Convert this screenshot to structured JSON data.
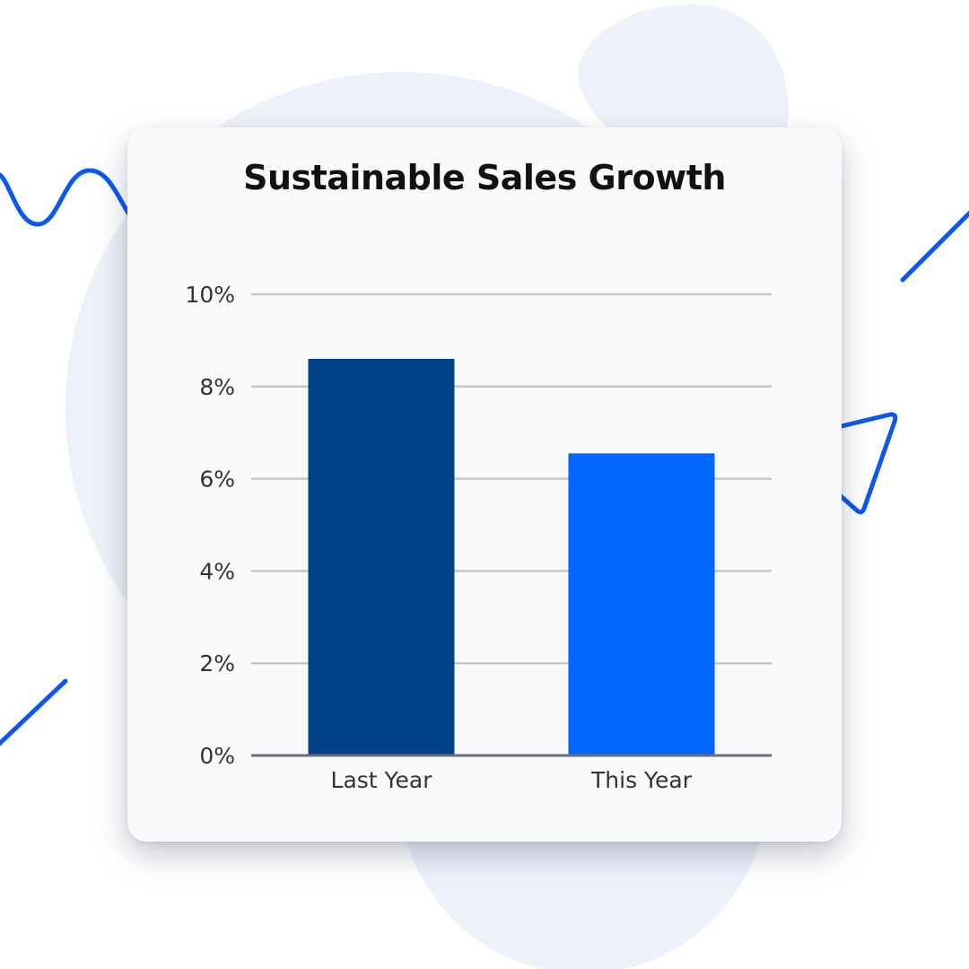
{
  "chart_data": {
    "type": "bar",
    "title": "Sustainable Sales Growth",
    "xlabel": "",
    "ylabel": "",
    "categories": [
      "Last Year",
      "This Year"
    ],
    "values": [
      8.6,
      6.55
    ],
    "bar_colors": [
      "#004389",
      "#0066ff"
    ],
    "ylim": [
      0,
      10
    ],
    "y_ticks": [
      0,
      2,
      4,
      6,
      8,
      10
    ],
    "y_tick_labels": [
      "0%",
      "2%",
      "4%",
      "6%",
      "8%",
      "10%"
    ],
    "grid": true,
    "legend": "none"
  },
  "colors": {
    "card_background": "#f9fafc",
    "gridline": "#c4c6ca",
    "baseline": "#6b6d72",
    "decoration_blob": "#edf1fb",
    "decoration_stroke": "#0b57f0"
  }
}
